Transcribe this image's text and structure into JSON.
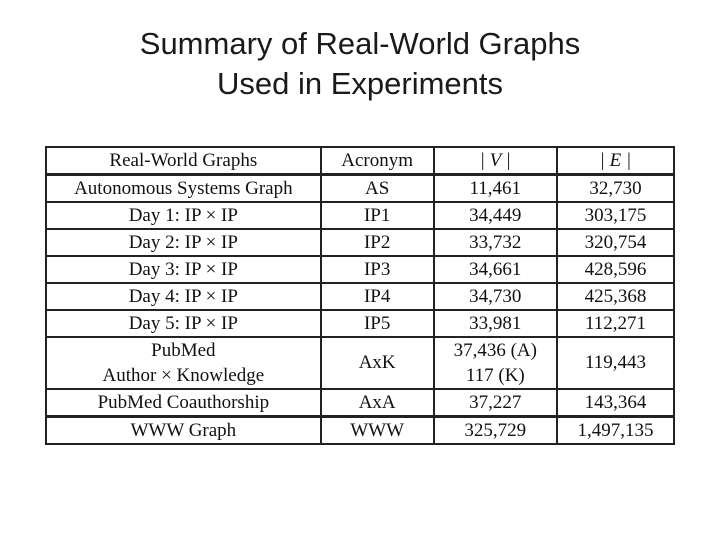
{
  "title": {
    "line1": "Summary of Real-World Graphs",
    "line2": "Used in Experiments"
  },
  "table": {
    "headers": {
      "graph": "Real-World Graphs",
      "acronym": "Acronym",
      "v": "| V |",
      "e": "| E |"
    },
    "rows": [
      {
        "graph": [
          "Autonomous Systems Graph"
        ],
        "acronym": "AS",
        "v": [
          "11,461"
        ],
        "e": "32,730"
      },
      {
        "graph": [
          "Day 1: IP × IP"
        ],
        "acronym": "IP1",
        "v": [
          "34,449"
        ],
        "e": "303,175"
      },
      {
        "graph": [
          "Day 2: IP × IP"
        ],
        "acronym": "IP2",
        "v": [
          "33,732"
        ],
        "e": "320,754"
      },
      {
        "graph": [
          "Day 3: IP × IP"
        ],
        "acronym": "IP3",
        "v": [
          "34,661"
        ],
        "e": "428,596"
      },
      {
        "graph": [
          "Day 4: IP × IP"
        ],
        "acronym": "IP4",
        "v": [
          "34,730"
        ],
        "e": "425,368"
      },
      {
        "graph": [
          "Day 5: IP × IP"
        ],
        "acronym": "IP5",
        "v": [
          "33,981"
        ],
        "e": "112,271"
      },
      {
        "graph": [
          "PubMed",
          "Author × Knowledge"
        ],
        "acronym": "AxK",
        "v": [
          "37,436 (A)",
          "117 (K)"
        ],
        "e": "119,443"
      },
      {
        "graph": [
          "PubMed Coauthorship"
        ],
        "acronym": "AxA",
        "v": [
          "37,227"
        ],
        "e": "143,364"
      },
      {
        "graph": [
          "WWW Graph"
        ],
        "acronym": "WWW",
        "v": [
          "325,729"
        ],
        "e": "1,497,135"
      }
    ]
  }
}
